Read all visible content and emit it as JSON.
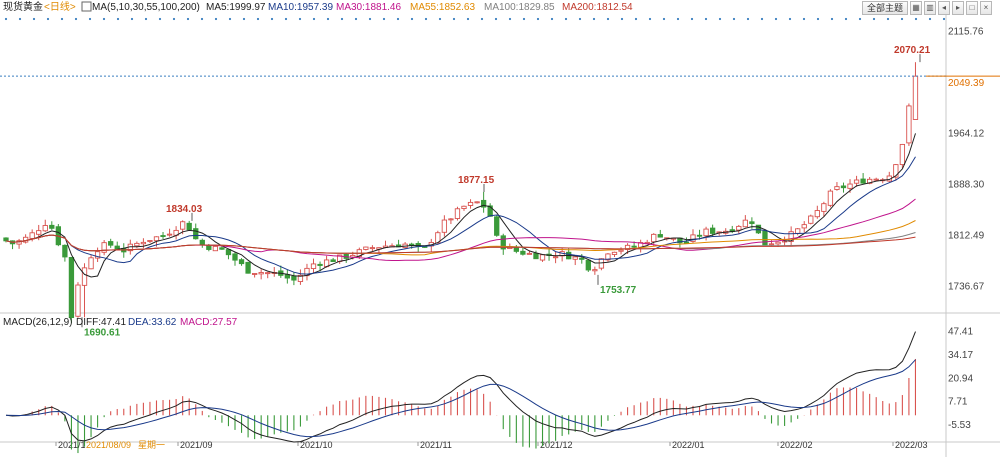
{
  "header": {
    "instrument": "现货黄金",
    "period": "<日线>",
    "ma_label": "MA(5,10,30,55,100,200)",
    "ma": [
      {
        "label": "MA5:1999.97",
        "color": "#222222"
      },
      {
        "label": "MA10:1957.39",
        "color": "#1a3a8a"
      },
      {
        "label": "MA30:1881.46",
        "color": "#c0148c"
      },
      {
        "label": "MA55:1852.63",
        "color": "#e08a00"
      },
      {
        "label": "MA100:1829.85",
        "color": "#808080"
      },
      {
        "label": "MA200:1812.54",
        "color": "#c0392b"
      }
    ]
  },
  "toolbar": {
    "theme_label": "全部主题",
    "icons": [
      "grid-icon",
      "chart-icon",
      "left-icon",
      "right-icon",
      "window-icon",
      "close-icon"
    ]
  },
  "colors": {
    "up": "#d9534f",
    "down": "#3a9a3a",
    "price_line": "#3a7fc0",
    "cursor": "#e07000"
  },
  "chart_data": [
    {
      "type": "candlestick",
      "y_ticks": [
        "2115.76",
        "2049.39",
        "1964.12",
        "1888.30",
        "1812.49",
        "1736.67"
      ],
      "current_price": "2049.39",
      "x_ticks": [
        "2021/1",
        "2021/08/09",
        "星期一",
        "2021/09",
        "2021/10",
        "2021/11",
        "2021/12",
        "2022/01",
        "2022/02",
        "2022/03"
      ],
      "annotations": [
        {
          "label": "1834.03",
          "value": 1834.03,
          "kind": "high"
        },
        {
          "label": "1690.61",
          "value": 1690.61,
          "kind": "low"
        },
        {
          "label": "1877.15",
          "value": 1877.15,
          "kind": "high"
        },
        {
          "label": "1753.77",
          "value": 1753.77,
          "kind": "low"
        },
        {
          "label": "2070.21",
          "value": 2070.21,
          "kind": "high"
        }
      ],
      "ylim": [
        1700,
        2130
      ]
    },
    {
      "type": "macd",
      "label": "MACD(26,12,9)",
      "diff_label": "DIFF:47.41",
      "dea_label": "DEA:33.62",
      "macd_label": "MACD:27.57",
      "y_ticks": [
        "47.41",
        "34.17",
        "20.94",
        "7.71",
        "-5.53"
      ],
      "ylim": [
        -14,
        50
      ]
    }
  ]
}
